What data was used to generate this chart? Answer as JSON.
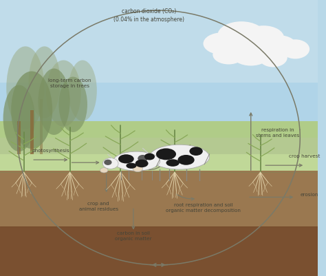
{
  "figsize": [
    4.74,
    4.02
  ],
  "dpi": 100,
  "sky_color": "#b8d8e8",
  "sky_top_color": "#a0c8e0",
  "grass_color": "#a8c880",
  "grass_mid_color": "#c8d8a0",
  "soil_top_color": "#a08060",
  "soil_bot_color": "#7a5838",
  "tree_bg_color": "#8a9e78",
  "tree_fg_color": "#6a8858",
  "labels": {
    "co2": "carbon dioxide (CO₂)\n(0.04% in the atmosphere)",
    "long_term": "long-term carbon\nstorage in trees",
    "photosynthesis": "photosynthesis",
    "crop_harvest": "crop harvest",
    "respiration": "respiration in\nstems and leaves",
    "crop_animal": "crop and\nanimal residues",
    "root_resp": "root respiration and soil\norganic matter decomposition",
    "carbon_soil": "carbon in soil\norganic matter",
    "erosion": "erosion"
  },
  "arrow_color": "#7a7a68",
  "text_color": "#444438",
  "label_fontsize": 5.2
}
